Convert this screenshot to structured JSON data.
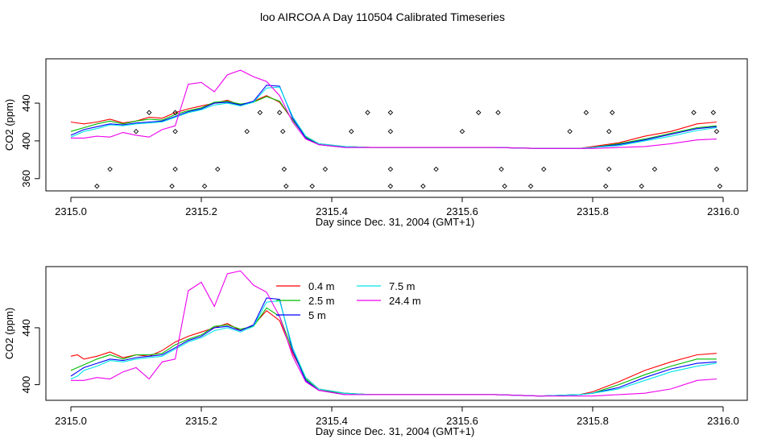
{
  "title": "loo AIRCOA A  Day 110504  Calibrated Timeseries",
  "chart_data": [
    {
      "type": "line",
      "xlabel": "Day since Dec. 31, 2004 (GMT+1)",
      "ylabel": "CO2 (ppm)",
      "xlim": [
        2315.0,
        2316.0
      ],
      "ylim": [
        347,
        487
      ],
      "xticks": [
        "2315.0",
        "2315.2",
        "2315.4",
        "2315.6",
        "2315.8",
        "2316.0"
      ],
      "xtick_values": [
        2315.0,
        2315.2,
        2315.4,
        2315.6,
        2315.8,
        2316.0
      ],
      "yticks": [
        "360",
        "400",
        "440"
      ],
      "ytick_values": [
        360,
        400,
        440
      ],
      "legend": "none",
      "series": [
        {
          "name": "0.4 m",
          "color": "#ff0000",
          "x": [
            2315.0,
            2315.02,
            2315.04,
            2315.06,
            2315.08,
            2315.1,
            2315.12,
            2315.14,
            2315.16,
            2315.18,
            2315.2,
            2315.22,
            2315.24,
            2315.26,
            2315.28,
            2315.3,
            2315.32,
            2315.34,
            2315.36,
            2315.38,
            2315.42,
            2315.46,
            2315.55,
            2315.65,
            2315.72,
            2315.78,
            2315.8,
            2315.84,
            2315.88,
            2315.92,
            2315.96,
            2315.99
          ],
          "y": [
            420,
            418,
            420,
            423,
            419,
            421,
            425,
            424,
            430,
            434,
            437,
            440,
            443,
            438,
            442,
            448,
            441,
            422,
            405,
            397,
            394,
            393,
            393,
            393,
            392,
            392,
            394,
            398,
            405,
            410,
            418,
            420
          ]
        },
        {
          "name": "2.5 m",
          "color": "#00bb00",
          "x": [
            2315.0,
            2315.02,
            2315.04,
            2315.06,
            2315.08,
            2315.1,
            2315.12,
            2315.14,
            2315.16,
            2315.18,
            2315.2,
            2315.22,
            2315.24,
            2315.26,
            2315.28,
            2315.3,
            2315.32,
            2315.34,
            2315.36,
            2315.38,
            2315.42,
            2315.46,
            2315.55,
            2315.65,
            2315.72,
            2315.78,
            2315.8,
            2315.84,
            2315.88,
            2315.92,
            2315.96,
            2315.99
          ],
          "y": [
            410,
            414,
            418,
            421,
            418,
            421,
            423,
            422,
            428,
            432,
            435,
            441,
            442,
            439,
            441,
            447,
            442,
            422,
            404,
            396,
            394,
            393,
            393,
            393,
            392,
            392,
            393,
            397,
            402,
            408,
            414,
            416
          ]
        },
        {
          "name": "5 m",
          "color": "#0000ff",
          "x": [
            2315.0,
            2315.02,
            2315.04,
            2315.06,
            2315.08,
            2315.1,
            2315.12,
            2315.14,
            2315.16,
            2315.18,
            2315.2,
            2315.22,
            2315.24,
            2315.26,
            2315.28,
            2315.3,
            2315.32,
            2315.34,
            2315.36,
            2315.38,
            2315.42,
            2315.46,
            2315.55,
            2315.65,
            2315.72,
            2315.78,
            2315.8,
            2315.84,
            2315.88,
            2315.92,
            2315.96,
            2315.99
          ],
          "y": [
            406,
            412,
            415,
            418,
            417,
            419,
            420,
            421,
            426,
            431,
            434,
            440,
            441,
            438,
            442,
            459,
            458,
            424,
            403,
            396,
            393,
            393,
            393,
            393,
            392,
            392,
            393,
            396,
            401,
            407,
            413,
            415
          ]
        },
        {
          "name": "7.5 m",
          "color": "#00e5e5",
          "x": [
            2315.0,
            2315.02,
            2315.04,
            2315.06,
            2315.08,
            2315.1,
            2315.12,
            2315.14,
            2315.16,
            2315.18,
            2315.2,
            2315.22,
            2315.24,
            2315.26,
            2315.28,
            2315.3,
            2315.32,
            2315.34,
            2315.36,
            2315.38,
            2315.42,
            2315.46,
            2315.55,
            2315.65,
            2315.72,
            2315.78,
            2315.8,
            2315.84,
            2315.88,
            2315.92,
            2315.96,
            2315.99
          ],
          "y": [
            404,
            410,
            413,
            417,
            416,
            418,
            419,
            420,
            425,
            430,
            433,
            438,
            440,
            437,
            441,
            456,
            457,
            426,
            405,
            397,
            394,
            393,
            393,
            393,
            392,
            392,
            393,
            395,
            400,
            405,
            411,
            414
          ]
        },
        {
          "name": "24.4 m",
          "color": "#ee00ee",
          "x": [
            2315.0,
            2315.02,
            2315.04,
            2315.06,
            2315.08,
            2315.1,
            2315.12,
            2315.14,
            2315.16,
            2315.18,
            2315.2,
            2315.22,
            2315.24,
            2315.26,
            2315.28,
            2315.3,
            2315.32,
            2315.34,
            2315.36,
            2315.38,
            2315.42,
            2315.46,
            2315.55,
            2315.65,
            2315.72,
            2315.78,
            2315.8,
            2315.84,
            2315.88,
            2315.92,
            2315.96,
            2315.99
          ],
          "y": [
            403,
            403,
            405,
            404,
            409,
            406,
            404,
            412,
            416,
            460,
            462,
            452,
            470,
            475,
            468,
            463,
            448,
            420,
            402,
            396,
            393,
            393,
            393,
            393,
            392,
            392,
            392,
            393,
            394,
            397,
            401,
            402
          ]
        }
      ],
      "markers": {
        "symbol": "diamond",
        "x": [
          2315.04,
          2315.06,
          2315.1,
          2315.12,
          2315.155,
          2315.16,
          2315.16,
          2315.16,
          2315.205,
          2315.225,
          2315.27,
          2315.29,
          2315.32,
          2315.325,
          2315.327,
          2315.33,
          2315.37,
          2315.39,
          2315.43,
          2315.455,
          2315.49,
          2315.49,
          2315.49,
          2315.49,
          2315.54,
          2315.56,
          2315.6,
          2315.625,
          2315.655,
          2315.66,
          2315.665,
          2315.705,
          2315.725,
          2315.765,
          2315.79,
          2315.82,
          2315.825,
          2315.825,
          2315.83,
          2315.875,
          2315.895,
          2315.955,
          2315.985,
          2315.99,
          2315.99,
          2315.995
        ],
        "y": [
          352,
          370,
          410,
          430,
          352,
          370,
          410,
          430,
          352,
          370,
          410,
          430,
          430,
          410,
          370,
          352,
          352,
          370,
          410,
          430,
          352,
          370,
          410,
          430,
          352,
          370,
          410,
          430,
          430,
          370,
          352,
          352,
          370,
          410,
          430,
          352,
          370,
          410,
          430,
          352,
          370,
          430,
          430,
          410,
          370,
          352
        ]
      }
    },
    {
      "type": "line",
      "xlabel": "Day since Dec. 31, 2004 (GMT+1)",
      "ylabel": "CO2 (ppm)",
      "xlim": [
        2315.0,
        2316.0
      ],
      "ylim": [
        389,
        483
      ],
      "xticks": [
        "2315.0",
        "2315.2",
        "2315.4",
        "2315.6",
        "2315.8",
        "2316.0"
      ],
      "xtick_values": [
        2315.0,
        2315.2,
        2315.4,
        2315.6,
        2315.8,
        2316.0
      ],
      "yticks": [
        "400",
        "440"
      ],
      "ytick_values": [
        400,
        440
      ],
      "legend": "top-center",
      "legend_entries": [
        {
          "label": "0.4 m",
          "color": "#ff0000"
        },
        {
          "label": "2.5 m",
          "color": "#00bb00"
        },
        {
          "label": "5 m",
          "color": "#0000ff"
        },
        {
          "label": "7.5 m",
          "color": "#00e5e5"
        },
        {
          "label": "24.4 m",
          "color": "#ee00ee"
        }
      ],
      "series": [
        {
          "name": "0.4 m",
          "color": "#ff0000",
          "x": [
            2315.0,
            2315.01,
            2315.02,
            2315.04,
            2315.06,
            2315.08,
            2315.1,
            2315.12,
            2315.14,
            2315.16,
            2315.18,
            2315.2,
            2315.22,
            2315.24,
            2315.26,
            2315.28,
            2315.3,
            2315.32,
            2315.34,
            2315.36,
            2315.38,
            2315.42,
            2315.46,
            2315.55,
            2315.65,
            2315.72,
            2315.78,
            2315.8,
            2315.84,
            2315.88,
            2315.92,
            2315.96,
            2315.99
          ],
          "y": [
            420,
            421,
            418,
            420,
            423,
            419,
            421,
            420,
            424,
            430,
            434,
            437,
            440,
            443,
            438,
            442,
            452,
            445,
            422,
            405,
            397,
            394,
            393,
            393,
            393,
            392,
            393,
            395,
            402,
            410,
            416,
            421,
            422
          ]
        },
        {
          "name": "2.5 m",
          "color": "#00bb00",
          "x": [
            2315.0,
            2315.01,
            2315.02,
            2315.04,
            2315.06,
            2315.08,
            2315.1,
            2315.12,
            2315.14,
            2315.16,
            2315.18,
            2315.2,
            2315.22,
            2315.24,
            2315.26,
            2315.28,
            2315.3,
            2315.32,
            2315.34,
            2315.36,
            2315.38,
            2315.42,
            2315.46,
            2315.55,
            2315.65,
            2315.72,
            2315.78,
            2315.8,
            2315.84,
            2315.88,
            2315.92,
            2315.96,
            2315.99
          ],
          "y": [
            410,
            412,
            414,
            418,
            421,
            418,
            421,
            421,
            422,
            428,
            432,
            435,
            441,
            442,
            439,
            441,
            454,
            448,
            424,
            404,
            396,
            394,
            393,
            393,
            393,
            392,
            393,
            394,
            400,
            407,
            413,
            418,
            418
          ]
        },
        {
          "name": "5 m",
          "color": "#0000ff",
          "x": [
            2315.0,
            2315.01,
            2315.02,
            2315.04,
            2315.06,
            2315.08,
            2315.1,
            2315.12,
            2315.14,
            2315.16,
            2315.18,
            2315.2,
            2315.22,
            2315.24,
            2315.26,
            2315.28,
            2315.3,
            2315.32,
            2315.34,
            2315.36,
            2315.38,
            2315.42,
            2315.46,
            2315.55,
            2315.65,
            2315.72,
            2315.78,
            2315.8,
            2315.84,
            2315.88,
            2315.92,
            2315.96,
            2315.99
          ],
          "y": [
            406,
            409,
            412,
            415,
            418,
            417,
            419,
            420,
            421,
            426,
            431,
            434,
            440,
            441,
            438,
            442,
            461,
            460,
            424,
            403,
            396,
            393,
            393,
            393,
            393,
            392,
            393,
            394,
            398,
            405,
            411,
            415,
            416
          ]
        },
        {
          "name": "7.5 m",
          "color": "#00e5e5",
          "x": [
            2315.0,
            2315.01,
            2315.02,
            2315.04,
            2315.06,
            2315.08,
            2315.1,
            2315.12,
            2315.14,
            2315.16,
            2315.18,
            2315.2,
            2315.22,
            2315.24,
            2315.26,
            2315.28,
            2315.3,
            2315.32,
            2315.34,
            2315.36,
            2315.38,
            2315.42,
            2315.46,
            2315.55,
            2315.65,
            2315.72,
            2315.78,
            2315.8,
            2315.84,
            2315.88,
            2315.92,
            2315.96,
            2315.99
          ],
          "y": [
            404,
            406,
            410,
            413,
            417,
            416,
            418,
            419,
            420,
            425,
            430,
            433,
            438,
            440,
            437,
            441,
            458,
            459,
            426,
            405,
            397,
            394,
            393,
            393,
            393,
            392,
            393,
            394,
            397,
            403,
            409,
            413,
            415
          ]
        },
        {
          "name": "24.4 m",
          "color": "#ee00ee",
          "x": [
            2315.0,
            2315.01,
            2315.02,
            2315.04,
            2315.06,
            2315.08,
            2315.1,
            2315.12,
            2315.14,
            2315.16,
            2315.18,
            2315.2,
            2315.22,
            2315.24,
            2315.26,
            2315.28,
            2315.3,
            2315.32,
            2315.34,
            2315.36,
            2315.38,
            2315.42,
            2315.46,
            2315.55,
            2315.65,
            2315.72,
            2315.78,
            2315.8,
            2315.84,
            2315.88,
            2315.92,
            2315.96,
            2315.99
          ],
          "y": [
            403,
            403,
            403,
            405,
            404,
            409,
            412,
            404,
            416,
            418,
            466,
            472,
            455,
            478,
            480,
            470,
            465,
            448,
            420,
            402,
            396,
            393,
            393,
            393,
            393,
            392,
            392,
            392,
            393,
            394,
            397,
            403,
            404
          ]
        }
      ]
    }
  ]
}
